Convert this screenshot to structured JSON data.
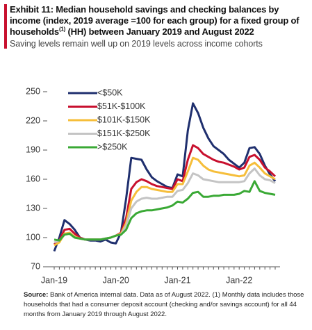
{
  "chart_data": {
    "type": "line",
    "title": "Exhibit 11: Median household savings and checking balances by income (index, 2019 average =100 for each group) for a fixed group of households",
    "title_note": "(1)",
    "title_end": " (HH) between January 2019 and August 2022",
    "subtitle": "Saving levels remain well up on 2019 levels across income cohorts",
    "source_label": "Source:",
    "source": "Bank of America internal data. Data as of August 2022. (1) Monthly data includes those households that had a consumer deposit account (checking and/or savings account) for all 44 months from January 2019 through August 2022.",
    "categories": [
      "Jan-19",
      null,
      null,
      null,
      null,
      null,
      null,
      null,
      null,
      null,
      null,
      null,
      "Jan-20",
      null,
      null,
      null,
      null,
      null,
      null,
      null,
      null,
      null,
      null,
      null,
      "Jan-21",
      null,
      null,
      null,
      null,
      null,
      null,
      null,
      null,
      null,
      null,
      null,
      "Jan-22",
      null,
      null,
      null,
      null,
      null,
      null,
      null
    ],
    "series": [
      {
        "name": "<$50K",
        "color": "#1f2f6e",
        "values": [
          86,
          100,
          118,
          114,
          108,
          100,
          98,
          97,
          97,
          96,
          98,
          95,
          94,
          105,
          140,
          182,
          181,
          180,
          170,
          162,
          158,
          155,
          152,
          151,
          165,
          163,
          210,
          238,
          228,
          213,
          202,
          194,
          190,
          186,
          180,
          176,
          172,
          177,
          192,
          193,
          186,
          174,
          165,
          158
        ]
      },
      {
        "name": "$51K-$100K",
        "color": "#c8102e",
        "values": [
          93,
          97,
          108,
          109,
          104,
          100,
          98,
          98,
          98,
          98,
          99,
          100,
          102,
          105,
          120,
          150,
          157,
          160,
          158,
          155,
          153,
          152,
          151,
          150,
          160,
          158,
          180,
          195,
          192,
          186,
          183,
          180,
          178,
          177,
          175,
          173,
          170,
          172,
          183,
          185,
          180,
          172,
          168,
          163
        ]
      },
      {
        "name": "$101K-$150K",
        "color": "#f6be3a",
        "values": [
          92,
          95,
          104,
          105,
          101,
          99,
          98,
          98,
          98,
          98,
          99,
          100,
          102,
          104,
          115,
          138,
          147,
          152,
          152,
          150,
          149,
          148,
          147,
          147,
          155,
          155,
          168,
          182,
          180,
          174,
          170,
          168,
          167,
          166,
          165,
          164,
          163,
          164,
          174,
          177,
          172,
          166,
          163,
          160
        ]
      },
      {
        "name": "$151K-$250K",
        "color": "#c4c4c4",
        "values": [
          95,
          97,
          103,
          104,
          100,
          99,
          98,
          98,
          98,
          98,
          99,
          100,
          102,
          103,
          112,
          130,
          137,
          140,
          141,
          140,
          140,
          141,
          142,
          142,
          148,
          149,
          156,
          166,
          164,
          160,
          159,
          158,
          157,
          157,
          157,
          157,
          157,
          158,
          166,
          171,
          164,
          160,
          159,
          156
        ]
      },
      {
        "name": ">$250K",
        "color": "#3aa935",
        "values": [
          98,
          97,
          103,
          104,
          100,
          99,
          98,
          98,
          98,
          98,
          99,
          100,
          102,
          103,
          108,
          120,
          125,
          127,
          128,
          128,
          129,
          130,
          131,
          133,
          137,
          136,
          140,
          146,
          147,
          142,
          142,
          143,
          143,
          144,
          144,
          144,
          145,
          148,
          147,
          158,
          148,
          146,
          145,
          144
        ]
      }
    ],
    "ylim": [
      70,
      250
    ],
    "yticks": [
      70,
      100,
      130,
      160,
      190,
      220,
      250
    ],
    "grid": false,
    "legend": "upper left"
  }
}
